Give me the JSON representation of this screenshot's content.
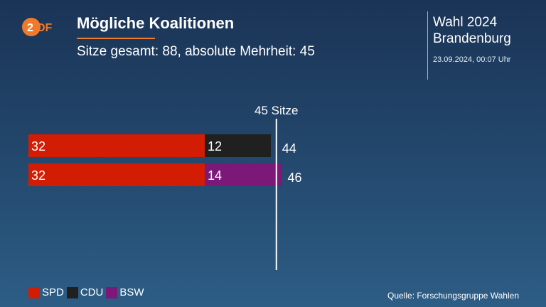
{
  "brand": {
    "logo_text": "ZDF",
    "logo_color": "#f07a2a"
  },
  "header": {
    "title": "Mögliche Koalitionen",
    "subtitle": "Sitze gesamt: 88, absolute Mehrheit: 45",
    "event_line1": "Wahl 2024",
    "event_line2": "Brandenburg",
    "timestamp": "23.09.2024, 00:07 Uhr"
  },
  "chart_data": {
    "type": "bar",
    "orientation": "horizontal",
    "stacked": true,
    "categories": [
      "SPD + CDU",
      "SPD + BSW"
    ],
    "rows": [
      {
        "segments": [
          {
            "party": "SPD",
            "value": 32
          },
          {
            "party": "CDU",
            "value": 12
          }
        ],
        "total": 44
      },
      {
        "segments": [
          {
            "party": "SPD",
            "value": 32
          },
          {
            "party": "BSW",
            "value": 14
          }
        ],
        "total": 46
      }
    ],
    "threshold": {
      "value": 45,
      "label": "45 Sitze"
    },
    "xlim": [
      0,
      46
    ],
    "colors": {
      "SPD": "#d21c04",
      "CDU": "#202020",
      "BSW": "#7b1878"
    },
    "legend_position": "bottom-left",
    "grid": false
  },
  "legend": [
    {
      "label": "SPD",
      "color": "#d21c04"
    },
    {
      "label": "CDU",
      "color": "#202020"
    },
    {
      "label": "BSW",
      "color": "#7b1878"
    }
  ],
  "source": "Quelle: Forschungsgruppe Wahlen"
}
